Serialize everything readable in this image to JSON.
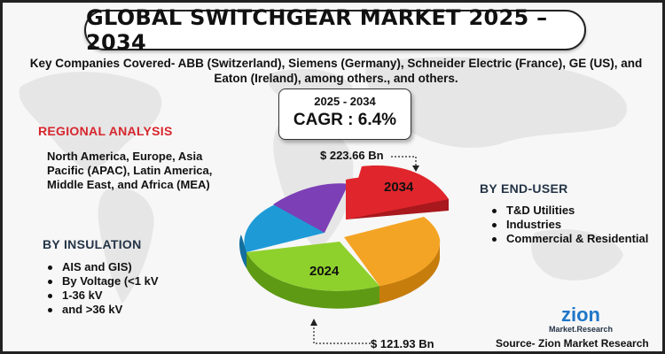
{
  "title": "GLOBAL SWITCHGEAR MARKET 2025 – 2034",
  "companies_text": "Key Companies Covered- ABB (Switzerland), Siemens (Germany), Schneider Electric (France), GE (US), and Eaton (Ireland), among others., and others.",
  "cagr_box": {
    "period": "2025 - 2034",
    "cagr": "CAGR : 6.4%"
  },
  "regional": {
    "heading": "REGIONAL ANALYSIS",
    "text": "North America, Europe, Asia Pacific (APAC), Latin America, Middle East, and Africa (MEA)"
  },
  "insulation": {
    "heading": "BY INSULATION",
    "items": [
      "AIS and GIS)",
      "By Voltage (<1 kV",
      "1-36 kV",
      "and >36 kV"
    ]
  },
  "end_user": {
    "heading": "BY END-USER",
    "items": [
      "T&D Utilities",
      "Industries",
      "Commercial & Residential"
    ]
  },
  "market": {
    "value_2034": "$ 223.66 Bn",
    "value_2024": "$ 121.93 Bn",
    "label_2034": "2034",
    "label_2024": "2024"
  },
  "colors": {
    "title_red": "#d7262d",
    "heading_dark": "#243447",
    "slice_red": "#e0262c",
    "slice_orange": "#f4a424",
    "slice_green": "#8fd12c",
    "slice_blue": "#1e9bd7",
    "slice_purple": "#7c3fb5",
    "logo_blue": "#1f77c8"
  },
  "logo": {
    "name": "zion",
    "sub": "Market.Research"
  },
  "source": "Source- Zion Market Research"
}
